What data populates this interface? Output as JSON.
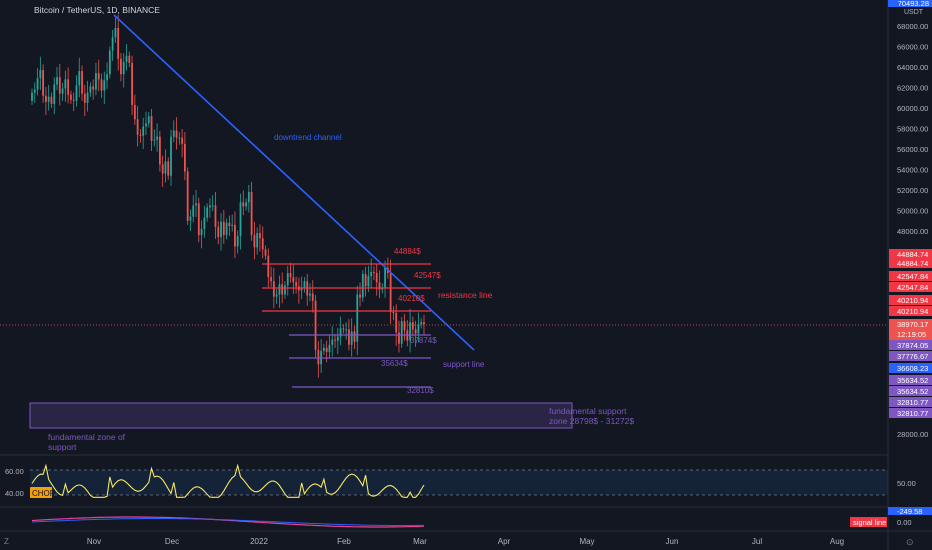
{
  "header": {
    "symbol": "Bitcoin / TetherUS, 1D, BINANCE",
    "currency": "USDT",
    "top_price": "70493.28"
  },
  "colors": {
    "background": "#131722",
    "up": "#26a69a",
    "down": "#ef5350",
    "trend": "#2962ff",
    "resistance": "#f23645",
    "support": "#7e57c2",
    "chop": "#f5e663"
  },
  "chart_data": [
    {
      "type": "candlestick",
      "symbol": "BTCUSDT",
      "timeframe": "1D",
      "exchange": "BINANCE",
      "x_ticks": [
        "Nov",
        "Dec",
        "2022",
        "Feb",
        "Mar",
        "Apr",
        "May",
        "Jun",
        "Jul",
        "Aug"
      ],
      "y_ticks": [
        68000,
        66000,
        64000,
        62000,
        60000,
        58000,
        56000,
        54000,
        52000,
        50000,
        48000,
        28000
      ],
      "ylim": [
        28000,
        70000
      ],
      "ohlc_close": [
        61500,
        61800,
        62900,
        63700,
        61200,
        60600,
        61100,
        60400,
        62300,
        63000,
        61400,
        61900,
        62800,
        61300,
        60800,
        60700,
        62200,
        63600,
        61400,
        60500,
        61500,
        62100,
        61800,
        63400,
        62800,
        61700,
        62700,
        63300,
        65600,
        66900,
        67800,
        64800,
        63300,
        64500,
        65100,
        64400,
        60300,
        58900,
        57400,
        57300,
        58200,
        58500,
        59200,
        56800,
        56900,
        57200,
        54500,
        53600,
        54800,
        53400,
        57200,
        57800,
        57100,
        57100,
        56500,
        53800,
        49000,
        49400,
        50500,
        50700,
        47600,
        48200,
        49300,
        50300,
        50500,
        50500,
        48400,
        47400,
        48900,
        47600,
        48800,
        48500,
        48600,
        46500,
        47500,
        50800,
        50400,
        50800,
        51800,
        47600,
        46400,
        47800,
        47300,
        46200,
        45600,
        43500,
        43100,
        41600,
        41800,
        42800,
        41800,
        42700,
        43900,
        43500,
        43000,
        42600,
        42200,
        42400,
        43100,
        41700,
        41900,
        41200,
        36400,
        35000,
        36300,
        36600,
        36200,
        36900,
        37400,
        37300,
        37700,
        38500,
        38400,
        38400,
        36900,
        38200,
        37200,
        41800,
        41500,
        43800,
        42600,
        43600,
        44000,
        43900,
        43000,
        42300,
        42500,
        44400,
        43900,
        40100,
        40000,
        38100,
        37000,
        39200,
        38300,
        37300,
        39100,
        38400,
        38000,
        38900,
        39100,
        38900
      ],
      "last_price": "38970.17",
      "countdown": "12:19:05",
      "price_labels": [
        "44884.74",
        "44884.74",
        "42547.84",
        "42547.84",
        "40210.94",
        "40210.94",
        "37874.05",
        "37776.67",
        "36608.23",
        "35634.52",
        "35634.52",
        "32810.77",
        "32810.77"
      ],
      "annotations": {
        "downtrend_label": "downtrend channel",
        "resistance_label": "resistance line",
        "support_label": "support line",
        "fundamental_zone_label": "fundamental zone of support",
        "fundamental_support_label": "fundamental support zone 28798$ - 31272$"
      },
      "resistance_levels": [
        {
          "price": 44884,
          "label": "44884$"
        },
        {
          "price": 42547,
          "label": "42547$"
        },
        {
          "price": 40210,
          "label": "40210$"
        }
      ],
      "support_levels": [
        {
          "price": 37874,
          "label": "37874$"
        },
        {
          "price": 35634,
          "label": "35634$"
        },
        {
          "price": 32810,
          "label": "32810$"
        }
      ],
      "fundamental_zone": [
        28798,
        31272
      ]
    },
    {
      "type": "line",
      "indicator": "CHOP",
      "y_ticks": [
        "60.00",
        "40.00"
      ],
      "right_label": "50.00",
      "levels": [
        61.8,
        38.2
      ]
    },
    {
      "type": "line",
      "indicator": "signal line",
      "right_values": [
        "-249.58",
        "0.00"
      ],
      "legend": "signal line"
    }
  ],
  "toolbar": {
    "left_glyph": "Z",
    "right_glyph": "⊙"
  }
}
